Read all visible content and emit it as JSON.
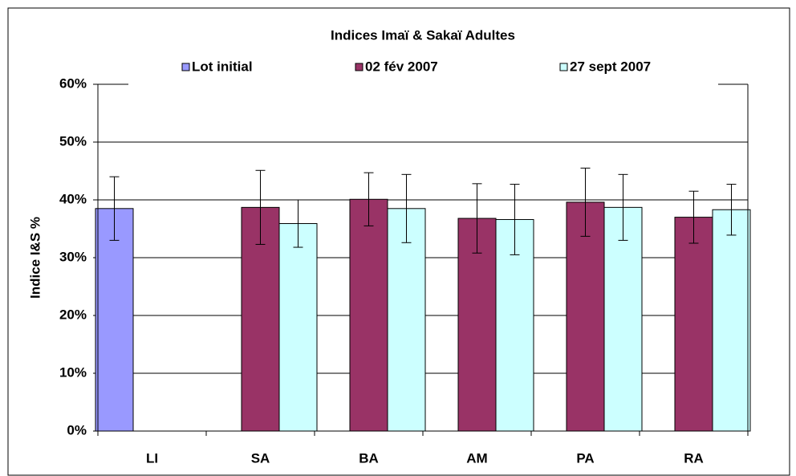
{
  "chart_data": {
    "type": "bar",
    "title": "Indices Imaï & Sakaï Adultes",
    "y_label": "Indice I&S %",
    "categories": [
      "LI",
      "SA",
      "BA",
      "AM",
      "PA",
      "RA"
    ],
    "series": [
      {
        "name": "Lot initial",
        "color": "#9999ff",
        "values": [
          38.5,
          null,
          null,
          null,
          null,
          null
        ],
        "errors": [
          5.5,
          null,
          null,
          null,
          null,
          null
        ]
      },
      {
        "name": "02 fév 2007",
        "color": "#993366",
        "values": [
          null,
          38.7,
          40.1,
          36.8,
          39.6,
          37.0
        ],
        "errors": [
          null,
          6.4,
          4.6,
          6.0,
          5.9,
          4.5
        ]
      },
      {
        "name": "27 sept 2007",
        "color": "#ccffff",
        "values": [
          null,
          35.9,
          38.5,
          36.6,
          38.7,
          38.3
        ],
        "errors": [
          null,
          4.1,
          5.9,
          6.1,
          5.7,
          4.4
        ]
      }
    ],
    "ylim": [
      0,
      60
    ],
    "yticks": [
      {
        "value": 0,
        "label": "0%"
      },
      {
        "value": 10,
        "label": "10%"
      },
      {
        "value": 20,
        "label": "20%"
      },
      {
        "value": 30,
        "label": "30%"
      },
      {
        "value": 40,
        "label": "40%"
      },
      {
        "value": 50,
        "label": "50%"
      },
      {
        "value": 60,
        "label": "60%"
      }
    ],
    "grid": true,
    "legend": "top"
  }
}
